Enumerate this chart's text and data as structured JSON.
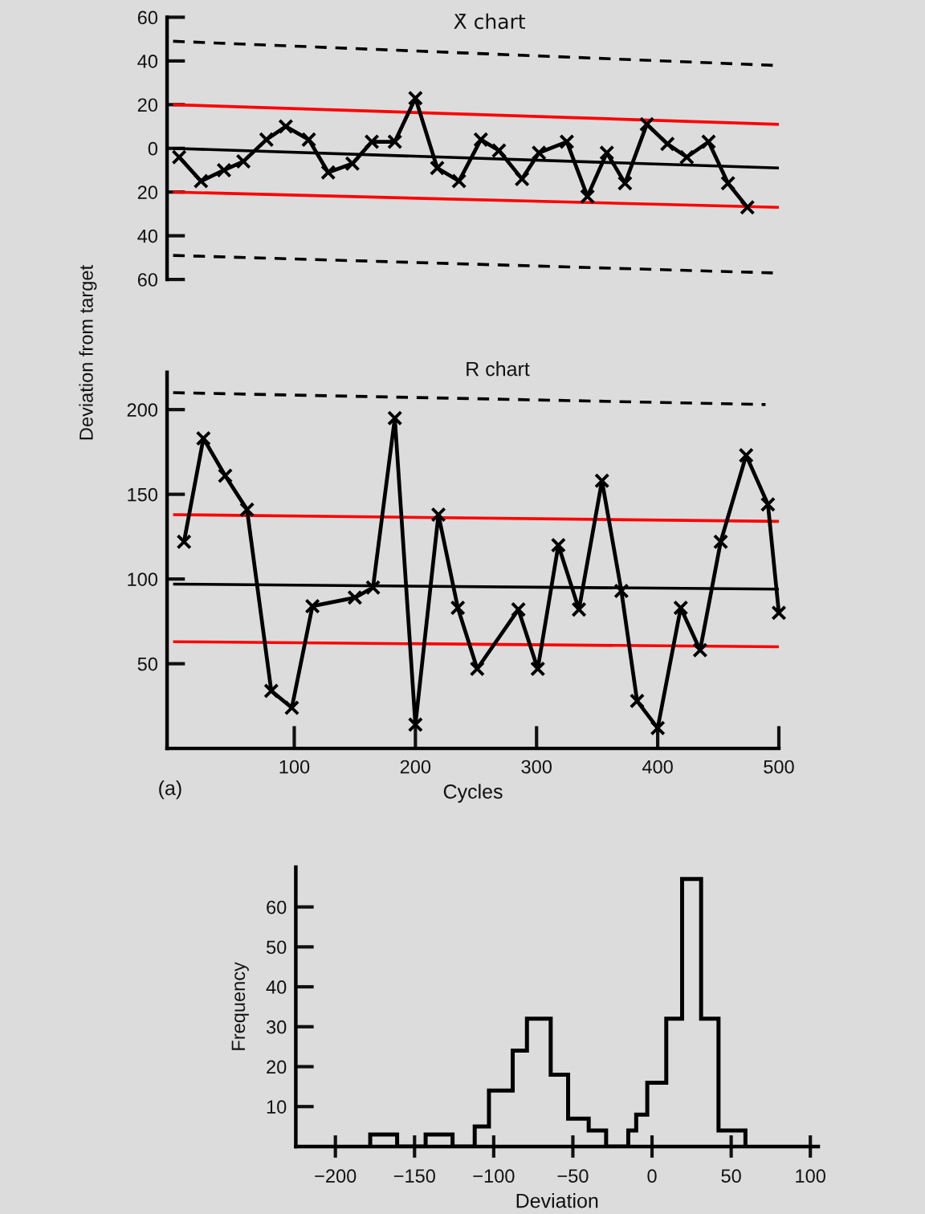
{
  "chart_data": [
    {
      "type": "line",
      "title": "X̄ chart",
      "ylabel": "Deviation from target",
      "xlim": [
        -5,
        500
      ],
      "ylim": [
        -60,
        60
      ],
      "yticks": [
        60,
        40,
        20,
        0,
        {
          "value": -20,
          "label": "20"
        },
        {
          "value": -40,
          "label": "40"
        },
        {
          "value": -60,
          "label": "60"
        }
      ],
      "tick_labels": "y",
      "series": [
        {
          "color": "#000000",
          "marker": "cross",
          "x": [
            5,
            23,
            42,
            58,
            77,
            93,
            112,
            128,
            148,
            164,
            183,
            200,
            218,
            236,
            254,
            269,
            288,
            302,
            325,
            342,
            358,
            373,
            391,
            408,
            424,
            442,
            458,
            474
          ],
          "values": [
            -4,
            -15,
            -10,
            -6,
            4,
            10,
            4,
            -11,
            -7,
            3,
            3,
            23,
            -9,
            -15,
            4,
            -1,
            -14,
            -2,
            3,
            -22,
            -2,
            -16,
            11,
            2,
            -4,
            3,
            -16,
            -27
          ]
        },
        {
          "color": "#000000",
          "line_style": "solid",
          "x": [
            0,
            500
          ],
          "values": [
            0,
            -9
          ]
        },
        {
          "color": "#000000",
          "line_style": "dashed",
          "x": [
            0,
            495
          ],
          "values": [
            49,
            38
          ]
        },
        {
          "color": "#000000",
          "line_style": "dashed",
          "x": [
            0,
            495
          ],
          "values": [
            -49,
            -57
          ]
        },
        {
          "color": "#ff0000",
          "line_style": "solid",
          "x": [
            0,
            500
          ],
          "values": [
            20,
            11
          ]
        },
        {
          "color": "#ff0000",
          "line_style": "solid",
          "x": [
            0,
            500
          ],
          "values": [
            -20,
            -27
          ]
        }
      ]
    },
    {
      "type": "line",
      "title": "R chart",
      "xlabel": "Cycles",
      "annotations": [
        "(a)"
      ],
      "xlim": [
        -5,
        500
      ],
      "xticks": [
        100,
        200,
        300,
        400,
        500
      ],
      "ylim": [
        0,
        222
      ],
      "yticks": [
        50,
        100,
        150,
        200
      ],
      "series": [
        {
          "color": "#000000",
          "marker": "cross",
          "x": [
            9,
            25,
            43,
            61,
            81,
            98,
            115,
            150,
            165,
            183,
            200,
            219,
            235,
            251,
            285,
            301,
            318,
            335,
            354,
            370,
            383,
            400,
            419,
            435,
            452,
            473,
            491,
            500
          ],
          "values": [
            122,
            183,
            161,
            141,
            34,
            24,
            84,
            89,
            95,
            195,
            14,
            138,
            83,
            47,
            82,
            47,
            120,
            82,
            158,
            93,
            28,
            12,
            83,
            58,
            122,
            173,
            144,
            80
          ]
        },
        {
          "color": "#000000",
          "line_style": "dashed",
          "x": [
            0,
            489
          ],
          "values": [
            210,
            203
          ]
        },
        {
          "color": "#000000",
          "line_style": "solid",
          "x": [
            0,
            500
          ],
          "values": [
            97,
            94
          ]
        },
        {
          "color": "#ff0000",
          "line_style": "solid",
          "x": [
            0,
            500
          ],
          "values": [
            138,
            134
          ]
        },
        {
          "color": "#ff0000",
          "line_style": "solid",
          "x": [
            0,
            500
          ],
          "values": [
            63,
            60
          ]
        }
      ]
    },
    {
      "type": "histogram",
      "xlabel": "Deviation",
      "ylabel": "Frequency",
      "color": "#000000",
      "bins": [
        -178,
        -161,
        -143,
        -126,
        -112,
        -103,
        -88,
        -79,
        -64,
        -53,
        -40,
        -29,
        -15,
        -10,
        -3,
        9,
        19,
        31,
        42,
        59
      ],
      "values": [
        3,
        0,
        3,
        0,
        5,
        14,
        24,
        32,
        18,
        7,
        4,
        0,
        4,
        8,
        16,
        32,
        67,
        32,
        4
      ],
      "xlim": [
        -225,
        105
      ],
      "xticks": [
        {
          "value": -200,
          "label": "−200"
        },
        {
          "value": -150,
          "label": "−150"
        },
        {
          "value": -100,
          "label": "−100"
        },
        {
          "value": -50,
          "label": "−50"
        },
        0,
        50,
        100
      ],
      "ylim": [
        0,
        70
      ],
      "yticks": [
        10,
        20,
        30,
        40,
        50,
        60
      ]
    }
  ]
}
